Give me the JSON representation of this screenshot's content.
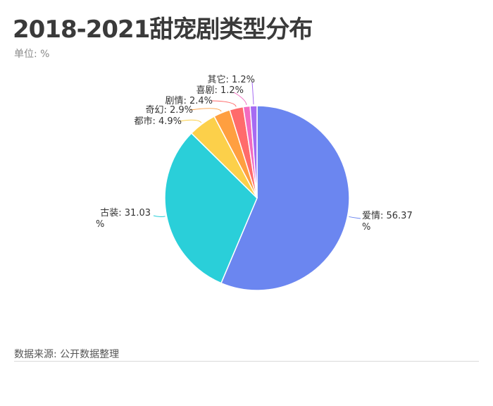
{
  "header": {
    "title": "2018-2021甜宠剧类型分布",
    "unit": "单位: %"
  },
  "footer": {
    "source": "数据来源: 公开数据整理"
  },
  "chart_data": {
    "type": "pie",
    "title": "2018-2021甜宠剧类型分布",
    "unit": "%",
    "slices": [
      {
        "name": "爱情",
        "value": 56.37,
        "label_line1": "爱情: 56.37",
        "label_line2": "%",
        "color": "#6B86F0"
      },
      {
        "name": "古装",
        "value": 31.03,
        "label_line1": "古装: 31.03",
        "label_line2": "%",
        "color": "#2ACFD9"
      },
      {
        "name": "都市",
        "value": 4.9,
        "label_line1": "都市: 4.9%",
        "label_line2": "",
        "color": "#FCD04A"
      },
      {
        "name": "奇幻",
        "value": 2.9,
        "label_line1": "奇幻: 2.9%",
        "label_line2": "",
        "color": "#FF9F40"
      },
      {
        "name": "剧情",
        "value": 2.4,
        "label_line1": "剧情: 2.4%",
        "label_line2": "",
        "color": "#FF6B6B"
      },
      {
        "name": "喜剧",
        "value": 1.2,
        "label_line1": "喜剧: 1.2%",
        "label_line2": "",
        "color": "#F26BC0"
      },
      {
        "name": "其它",
        "value": 1.2,
        "label_line1": "其它: 1.2%",
        "label_line2": "",
        "color": "#A66BF2"
      }
    ]
  }
}
